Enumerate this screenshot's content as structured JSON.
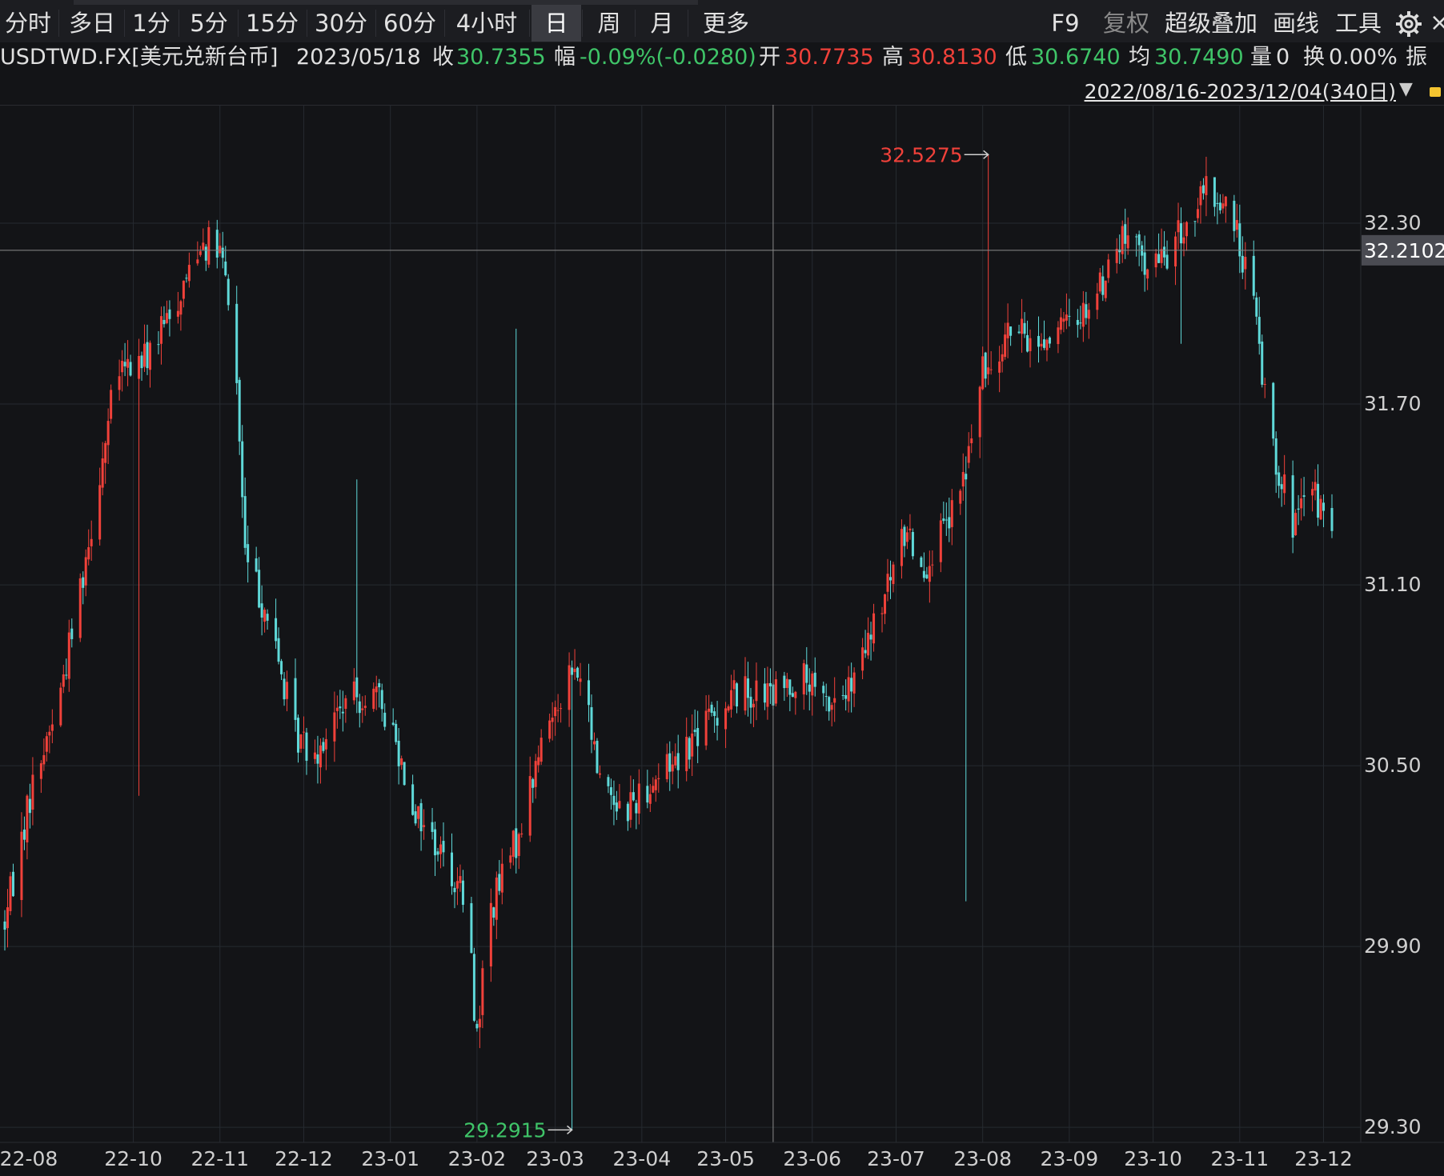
{
  "toolbar": {
    "periods": [
      "分时",
      "多日",
      "1分",
      "5分",
      "15分",
      "30分",
      "60分",
      "4小时",
      "日",
      "周",
      "月",
      "更多"
    ],
    "active_period": "日",
    "right_items": [
      "F9",
      "复权",
      "超级叠加",
      "画线",
      "工具"
    ],
    "gear_icon": "gear-icon",
    "close_label": "×"
  },
  "info": {
    "symbol": "USDTWD.FX[美元兑新台币]",
    "date": "2023/05/18",
    "close_label": "收",
    "close_value": "30.7355",
    "change_label": "幅",
    "change_value": "-0.09%(-0.0280)",
    "open_label": "开",
    "open_value": "30.7735",
    "high_label": "高",
    "high_value": "30.8130",
    "low_label": "低",
    "low_value": "30.6740",
    "avg_label": "均",
    "avg_value": "30.7490",
    "volume_label": "量",
    "volume_value": "0",
    "turnover_label": "换",
    "turnover_value": "0.00%",
    "amplitude_label": "振"
  },
  "range": {
    "text": "2022/08/16-2023/12/04(340日)",
    "caret": "▼"
  },
  "colors": {
    "up": "#f0413a",
    "down": "#5fd9d9",
    "background": "#131417",
    "grid": "#262a30"
  },
  "chart_data": {
    "type": "candlestick",
    "x_ticks": [
      "22-08",
      "22-10",
      "22-11",
      "22-12",
      "23-01",
      "23-02",
      "23-03",
      "23-04",
      "23-05",
      "23-06",
      "23-07",
      "23-08",
      "23-09",
      "23-10",
      "23-11",
      "23-12"
    ],
    "y_ticks": [
      "32.30",
      "31.70",
      "31.10",
      "30.50",
      "29.90",
      "29.30"
    ],
    "ylim": [
      29.25,
      32.6
    ],
    "crosshair_value": "32.2102",
    "max_label": "32.5275",
    "min_label": "29.2915",
    "trend": [
      [
        "2022-08-16",
        29.98
      ],
      [
        "2022-08-25",
        30.4
      ],
      [
        "2022-09-05",
        30.75
      ],
      [
        "2022-09-15",
        31.25
      ],
      [
        "2022-09-25",
        31.8
      ],
      [
        "2022-10-05",
        31.85
      ],
      [
        "2022-10-15",
        32.0
      ],
      [
        "2022-10-25",
        32.25
      ],
      [
        "2022-11-01",
        32.2
      ],
      [
        "2022-11-06",
        31.95
      ],
      [
        "2022-11-10",
        31.2
      ],
      [
        "2022-11-18",
        31.0
      ],
      [
        "2022-11-28",
        30.6
      ],
      [
        "2022-12-05",
        30.55
      ],
      [
        "2022-12-15",
        30.7
      ],
      [
        "2022-12-25",
        30.75
      ],
      [
        "2023-01-01",
        30.65
      ],
      [
        "2023-01-10",
        30.35
      ],
      [
        "2023-01-20",
        30.2
      ],
      [
        "2023-01-28",
        30.05
      ],
      [
        "2023-02-01",
        29.6
      ],
      [
        "2023-02-05",
        30.0
      ],
      [
        "2023-02-15",
        30.25
      ],
      [
        "2023-02-25",
        30.6
      ],
      [
        "2023-03-05",
        30.8
      ],
      [
        "2023-03-10",
        30.8
      ],
      [
        "2023-03-16",
        30.5
      ],
      [
        "2023-03-25",
        30.35
      ],
      [
        "2023-04-05",
        30.45
      ],
      [
        "2023-04-15",
        30.55
      ],
      [
        "2023-04-25",
        30.65
      ],
      [
        "2023-05-05",
        30.75
      ],
      [
        "2023-05-18",
        30.73
      ],
      [
        "2023-05-28",
        30.8
      ],
      [
        "2023-06-05",
        30.7
      ],
      [
        "2023-06-15",
        30.75
      ],
      [
        "2023-06-25",
        31.0
      ],
      [
        "2023-07-05",
        31.3
      ],
      [
        "2023-07-10",
        31.15
      ],
      [
        "2023-07-20",
        31.3
      ],
      [
        "2023-07-25",
        31.45
      ],
      [
        "2023-08-01",
        31.8
      ],
      [
        "2023-08-10",
        31.95
      ],
      [
        "2023-08-20",
        31.9
      ],
      [
        "2023-08-30",
        31.95
      ],
      [
        "2023-09-10",
        32.05
      ],
      [
        "2023-09-20",
        32.25
      ],
      [
        "2023-10-01",
        32.15
      ],
      [
        "2023-10-10",
        32.25
      ],
      [
        "2023-10-20",
        32.4
      ],
      [
        "2023-10-28",
        32.35
      ],
      [
        "2023-11-05",
        32.1
      ],
      [
        "2023-11-12",
        31.6
      ],
      [
        "2023-11-20",
        31.3
      ],
      [
        "2023-11-28",
        31.4
      ],
      [
        "2023-12-04",
        31.25
      ]
    ]
  }
}
